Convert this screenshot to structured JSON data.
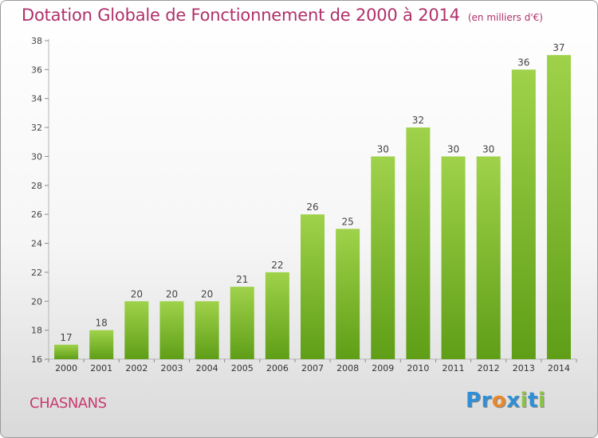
{
  "header": {
    "title": "Dotation Globale de Fonctionnement de 2000 à 2014",
    "unit": "(en milliers d'€)"
  },
  "footer": {
    "commune": "CHASNANS",
    "logo_letters": [
      {
        "ch": "P",
        "color": "#2f8fd6"
      },
      {
        "ch": "r",
        "color": "#2f8fd6"
      },
      {
        "ch": "o",
        "color": "#e8882a"
      },
      {
        "ch": "x",
        "color": "#2f8fd6"
      },
      {
        "ch": "i",
        "color": "#8bc34a"
      },
      {
        "ch": "t",
        "color": "#2f8fd6"
      },
      {
        "ch": "i",
        "color": "#8bc34a"
      }
    ]
  },
  "colors": {
    "bar_light": "#9fd24a",
    "bar_dark": "#5f9e17",
    "title": "#b0306a"
  },
  "chart_data": {
    "type": "bar",
    "title": "Dotation Globale de Fonctionnement de 2000 à 2014",
    "subtitle": "(en milliers d'€)",
    "categories": [
      "2000",
      "2001",
      "2002",
      "2003",
      "2004",
      "2005",
      "2006",
      "2007",
      "2008",
      "2009",
      "2010",
      "2011",
      "2012",
      "2013",
      "2014"
    ],
    "values": [
      17,
      18,
      20,
      20,
      20,
      21,
      22,
      26,
      25,
      30,
      32,
      30,
      30,
      36,
      37
    ],
    "ylim": [
      16,
      38
    ],
    "yticks": [
      16,
      18,
      20,
      22,
      24,
      26,
      28,
      30,
      32,
      34,
      36,
      38
    ],
    "grid": false,
    "legend": "none"
  }
}
